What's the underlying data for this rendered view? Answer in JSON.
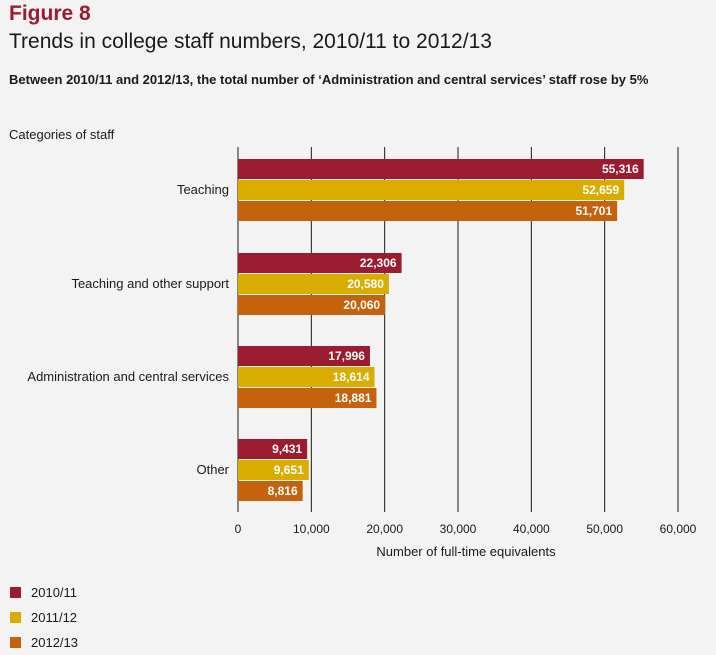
{
  "figure_label": "Figure 8",
  "chart_data": {
    "type": "bar",
    "orientation": "horizontal",
    "title": "Trends in college staff numbers, 2010/11 to 2012/13",
    "subtitle": "Between 2010/11 and 2012/13, the total number of ‘Administration and central services’ staff rose by 5%",
    "ylabel": "Categories of staff",
    "xlabel": "Number of full-time equivalents",
    "categories": [
      "Teaching",
      "Teaching and other support",
      "Administration and central services",
      "Other"
    ],
    "series": [
      {
        "name": "2010/11",
        "color": "#9b1b30",
        "values": [
          55316,
          22306,
          17996,
          9431
        ],
        "labels": [
          "55,316",
          "22,306",
          "17,996",
          "9,431"
        ]
      },
      {
        "name": "2011/12",
        "color": "#d9ac00",
        "values": [
          52659,
          20580,
          18614,
          9651
        ],
        "labels": [
          "52,659",
          "20,580",
          "18,614",
          "9,651"
        ]
      },
      {
        "name": "2012/13",
        "color": "#c5620e",
        "values": [
          51701,
          20060,
          18881,
          8816
        ],
        "labels": [
          "51,701",
          "20,060",
          "18,881",
          "8,816"
        ]
      }
    ],
    "xlim": [
      0,
      60000
    ],
    "xticks": [
      0,
      10000,
      20000,
      30000,
      40000,
      50000,
      60000
    ],
    "xtick_labels": [
      "0",
      "10,000",
      "20,000",
      "30,000",
      "40,000",
      "50,000",
      "60,000"
    ],
    "grid": true,
    "legend_position": "bottom-left"
  }
}
